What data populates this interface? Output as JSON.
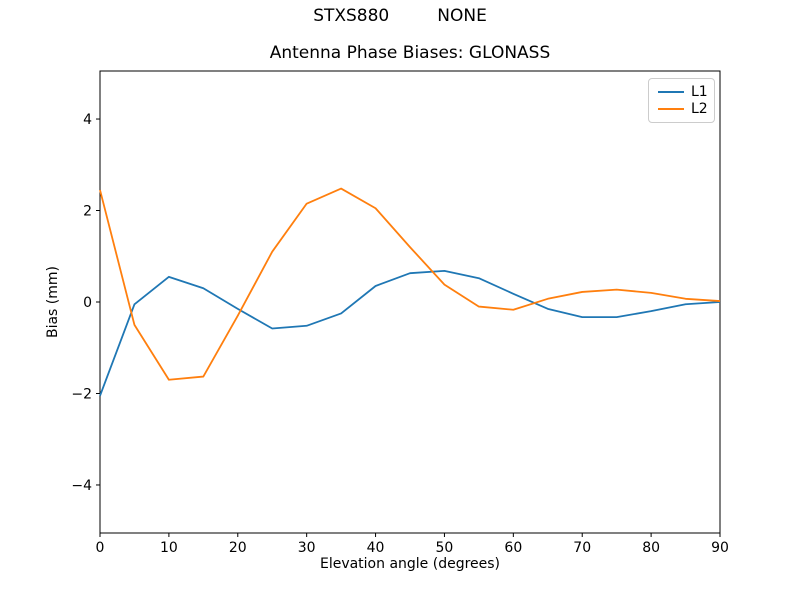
{
  "figure": {
    "suptitle_left": "STXS880",
    "suptitle_right": "NONE"
  },
  "chart_data": {
    "type": "line",
    "title": "Antenna Phase Biases: GLONASS",
    "xlabel": "Elevation angle (degrees)",
    "ylabel": "Bias (mm)",
    "xlim": [
      0,
      90
    ],
    "ylim": [
      -5.05,
      5.05
    ],
    "xticks": [
      0,
      10,
      20,
      30,
      40,
      50,
      60,
      70,
      80,
      90
    ],
    "yticks": [
      -4,
      -2,
      0,
      2,
      4
    ],
    "ytick_labels": [
      "−4",
      "−2",
      "0",
      "2",
      "4"
    ],
    "grid": false,
    "legend_position": "upper right",
    "x": [
      0,
      5,
      10,
      15,
      20,
      25,
      30,
      35,
      40,
      45,
      50,
      55,
      60,
      65,
      70,
      75,
      80,
      85,
      90
    ],
    "series": [
      {
        "name": "L1",
        "color": "#1f77b4",
        "values": [
          -2.05,
          -0.05,
          0.55,
          0.3,
          -0.15,
          -0.58,
          -0.52,
          -0.25,
          0.35,
          0.63,
          0.68,
          0.52,
          0.18,
          -0.15,
          -0.33,
          -0.33,
          -0.2,
          -0.05,
          0.0
        ]
      },
      {
        "name": "L2",
        "color": "#ff7f0e",
        "values": [
          2.45,
          -0.5,
          -1.7,
          -1.63,
          -0.3,
          1.1,
          2.15,
          2.48,
          2.05,
          1.2,
          0.38,
          -0.1,
          -0.17,
          0.07,
          0.22,
          0.27,
          0.2,
          0.07,
          0.02
        ]
      }
    ]
  }
}
